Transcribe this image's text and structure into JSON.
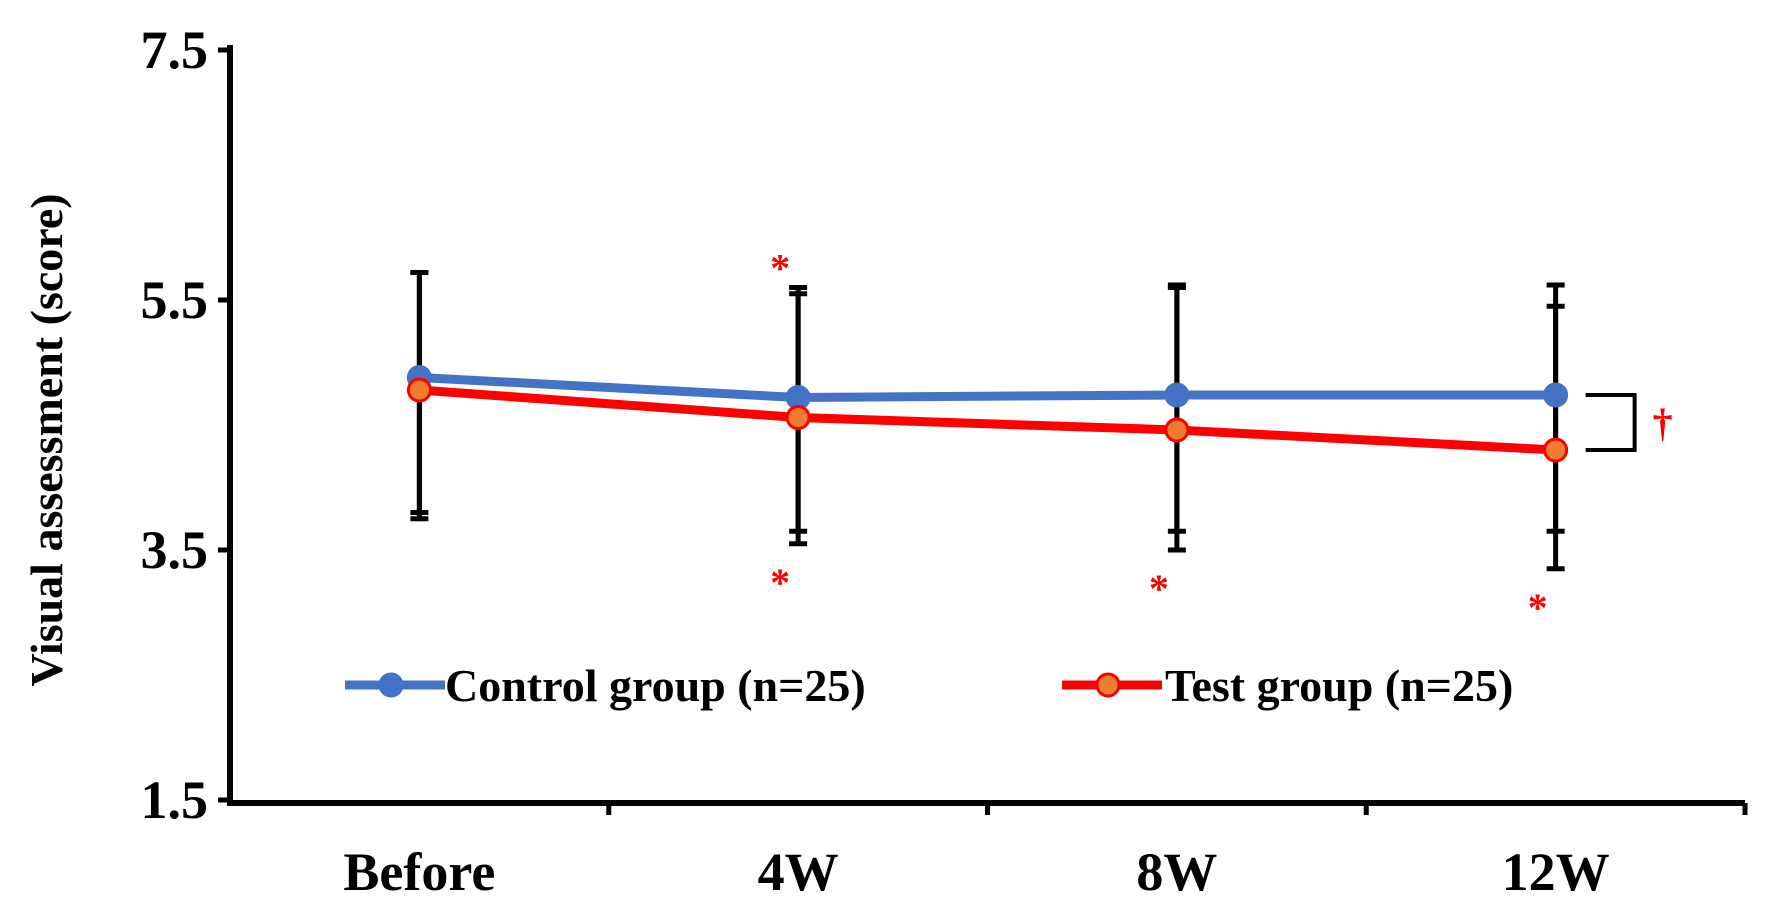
{
  "chart_data": {
    "type": "line",
    "categories": [
      "Before",
      "4W",
      "8W",
      "12W"
    ],
    "ylabel": "Visual assessment (score)",
    "xlabel": "",
    "ylim": [
      1.5,
      7.5
    ],
    "yticks": [
      "1.5",
      "3.5",
      "5.5",
      "7.5"
    ],
    "grid": false,
    "legend_position": "bottom-center",
    "series": [
      {
        "name": "Control group (n=25)",
        "color": "#4472C4",
        "marker_color": "#4472C4",
        "values": [
          4.88,
          4.72,
          4.74,
          4.74
        ],
        "err_low": [
          3.8,
          3.65,
          3.65,
          3.65
        ],
        "err_high": [
          5.72,
          5.55,
          5.6,
          5.45
        ]
      },
      {
        "name": "Test group (n=25)",
        "color": "#FF0000",
        "marker_color": "#ED7D31",
        "values": [
          4.78,
          4.56,
          4.46,
          4.3
        ],
        "err_low": [
          3.75,
          3.55,
          3.5,
          3.35
        ],
        "err_high": [
          5.72,
          5.6,
          5.62,
          5.62
        ]
      }
    ],
    "annotations": [
      {
        "text": "*",
        "category": "4W",
        "position": "above",
        "color": "#FF0000"
      },
      {
        "text": "*",
        "category": "4W",
        "position": "below",
        "color": "#FF0000"
      },
      {
        "text": "*",
        "category": "8W",
        "position": "below",
        "color": "#FF0000"
      },
      {
        "text": "*",
        "category": "12W",
        "position": "below",
        "color": "#FF0000"
      },
      {
        "text": "†",
        "category": "12W",
        "position": "bracket-right",
        "color": "#FF0000"
      }
    ]
  }
}
